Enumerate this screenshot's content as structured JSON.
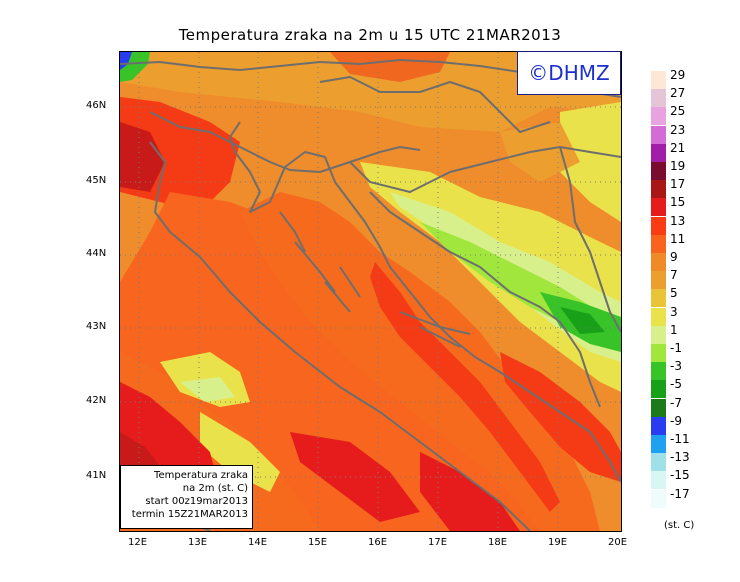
{
  "title": "Temperatura zraka na 2m u 15 UTC 21MAR2013",
  "logo": "©DHMZ",
  "infobox": {
    "line1": "Temperatura zraka",
    "line2": "na 2m (st. C)",
    "line3": "start 00z19mar2013",
    "line4": "termin 15Z21MAR2013"
  },
  "lat_labels": [
    "46N",
    "45N",
    "44N",
    "43N",
    "42N",
    "41N"
  ],
  "lon_labels": [
    "12E",
    "13E",
    "14E",
    "15E",
    "16E",
    "17E",
    "18E",
    "19E",
    "20E"
  ],
  "legend": {
    "units": "(st. C)",
    "labels": [
      "29",
      "27",
      "25",
      "23",
      "21",
      "19",
      "17",
      "15",
      "13",
      "11",
      "9",
      "7",
      "5",
      "3",
      "1",
      "-1",
      "-3",
      "-5",
      "-7",
      "-9",
      "-11",
      "-13",
      "-15",
      "-17"
    ],
    "colors": [
      "#fde8d6",
      "#e6c4d8",
      "#e8a2e0",
      "#d46cd8",
      "#a01ea8",
      "#7a0c30",
      "#a81616",
      "#e61c1c",
      "#fa3c14",
      "#f8641e",
      "#f08a28",
      "#ec9e2e",
      "#e8c436",
      "#eae24a",
      "#d8f08c",
      "#a0e63c",
      "#38c428",
      "#18a018",
      "#1b7a1a",
      "#2a3cf0",
      "#20a0f0",
      "#a0e0e8",
      "#d8f6f4",
      "#eefcfc"
    ]
  },
  "colors": {
    "sea_warm": "#f7651e",
    "land_orange": "#ef8c2c",
    "coast_hot": "#f53a16",
    "boundary_gray": "#6e6e6e",
    "logo_blue": "#1d2fd0"
  }
}
